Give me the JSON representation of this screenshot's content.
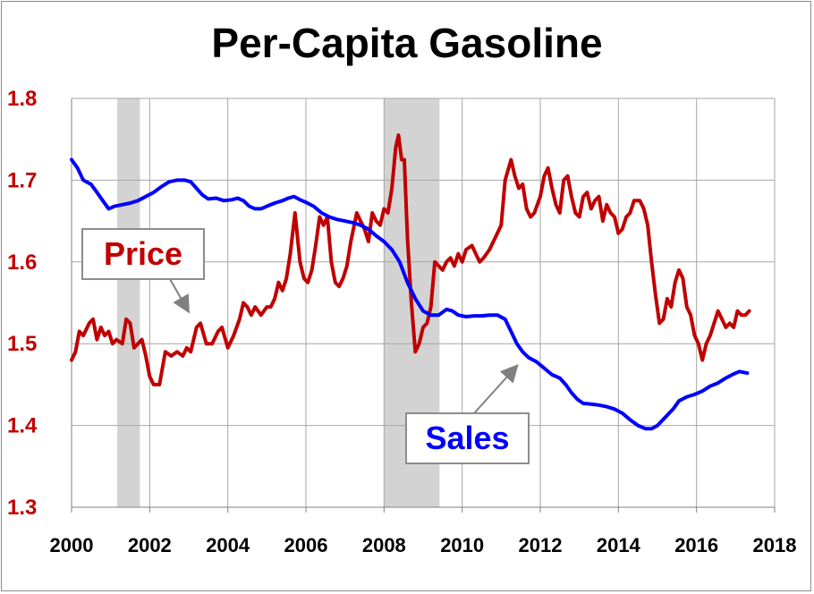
{
  "chart_data": {
    "type": "line",
    "title": "Per-Capita Gasoline",
    "xlim": [
      2000,
      2018
    ],
    "ylim": [
      1.3,
      1.8
    ],
    "x_ticks": [
      "2000",
      "2002",
      "2004",
      "2006",
      "2008",
      "2010",
      "2012",
      "2014",
      "2016",
      "2018"
    ],
    "y_ticks": [
      "1.3",
      "1.4",
      "1.5",
      "1.6",
      "1.7",
      "1.8"
    ],
    "grid": true,
    "recessions": [
      [
        2001.17,
        2001.75
      ],
      [
        2008.0,
        2009.42
      ]
    ],
    "series": [
      {
        "name": "Price",
        "color": "#c00000",
        "points": [
          [
            2000.0,
            1.48
          ],
          [
            2000.1,
            1.49
          ],
          [
            2000.2,
            1.515
          ],
          [
            2000.3,
            1.51
          ],
          [
            2000.45,
            1.525
          ],
          [
            2000.55,
            1.53
          ],
          [
            2000.65,
            1.505
          ],
          [
            2000.75,
            1.52
          ],
          [
            2000.85,
            1.51
          ],
          [
            2000.95,
            1.515
          ],
          [
            2001.05,
            1.5
          ],
          [
            2001.15,
            1.505
          ],
          [
            2001.3,
            1.5
          ],
          [
            2001.4,
            1.53
          ],
          [
            2001.5,
            1.525
          ],
          [
            2001.6,
            1.495
          ],
          [
            2001.7,
            1.5
          ],
          [
            2001.8,
            1.505
          ],
          [
            2001.9,
            1.485
          ],
          [
            2002.0,
            1.46
          ],
          [
            2002.1,
            1.45
          ],
          [
            2002.25,
            1.45
          ],
          [
            2002.4,
            1.49
          ],
          [
            2002.55,
            1.485
          ],
          [
            2002.7,
            1.49
          ],
          [
            2002.85,
            1.485
          ],
          [
            2002.95,
            1.495
          ],
          [
            2003.05,
            1.49
          ],
          [
            2003.2,
            1.52
          ],
          [
            2003.3,
            1.525
          ],
          [
            2003.45,
            1.5
          ],
          [
            2003.6,
            1.5
          ],
          [
            2003.75,
            1.515
          ],
          [
            2003.85,
            1.52
          ],
          [
            2004.0,
            1.495
          ],
          [
            2004.15,
            1.51
          ],
          [
            2004.3,
            1.53
          ],
          [
            2004.4,
            1.55
          ],
          [
            2004.5,
            1.545
          ],
          [
            2004.6,
            1.535
          ],
          [
            2004.7,
            1.545
          ],
          [
            2004.85,
            1.535
          ],
          [
            2005.0,
            1.545
          ],
          [
            2005.1,
            1.545
          ],
          [
            2005.2,
            1.555
          ],
          [
            2005.3,
            1.575
          ],
          [
            2005.4,
            1.565
          ],
          [
            2005.5,
            1.58
          ],
          [
            2005.6,
            1.61
          ],
          [
            2005.72,
            1.66
          ],
          [
            2005.85,
            1.6
          ],
          [
            2005.95,
            1.58
          ],
          [
            2006.05,
            1.575
          ],
          [
            2006.15,
            1.59
          ],
          [
            2006.25,
            1.62
          ],
          [
            2006.35,
            1.655
          ],
          [
            2006.45,
            1.645
          ],
          [
            2006.55,
            1.655
          ],
          [
            2006.65,
            1.6
          ],
          [
            2006.75,
            1.575
          ],
          [
            2006.85,
            1.57
          ],
          [
            2006.95,
            1.58
          ],
          [
            2007.05,
            1.595
          ],
          [
            2007.15,
            1.625
          ],
          [
            2007.3,
            1.66
          ],
          [
            2007.4,
            1.65
          ],
          [
            2007.5,
            1.64
          ],
          [
            2007.6,
            1.625
          ],
          [
            2007.7,
            1.66
          ],
          [
            2007.8,
            1.65
          ],
          [
            2007.9,
            1.645
          ],
          [
            2008.0,
            1.665
          ],
          [
            2008.1,
            1.66
          ],
          [
            2008.2,
            1.69
          ],
          [
            2008.3,
            1.74
          ],
          [
            2008.37,
            1.755
          ],
          [
            2008.45,
            1.725
          ],
          [
            2008.52,
            1.725
          ],
          [
            2008.6,
            1.63
          ],
          [
            2008.7,
            1.55
          ],
          [
            2008.8,
            1.49
          ],
          [
            2008.9,
            1.5
          ],
          [
            2009.0,
            1.52
          ],
          [
            2009.1,
            1.525
          ],
          [
            2009.2,
            1.545
          ],
          [
            2009.3,
            1.6
          ],
          [
            2009.4,
            1.595
          ],
          [
            2009.5,
            1.59
          ],
          [
            2009.6,
            1.6
          ],
          [
            2009.7,
            1.605
          ],
          [
            2009.8,
            1.595
          ],
          [
            2009.9,
            1.61
          ],
          [
            2010.0,
            1.6
          ],
          [
            2010.1,
            1.615
          ],
          [
            2010.25,
            1.62
          ],
          [
            2010.35,
            1.61
          ],
          [
            2010.45,
            1.6
          ],
          [
            2010.55,
            1.605
          ],
          [
            2010.7,
            1.615
          ],
          [
            2010.85,
            1.63
          ],
          [
            2011.0,
            1.645
          ],
          [
            2011.1,
            1.7
          ],
          [
            2011.25,
            1.725
          ],
          [
            2011.35,
            1.705
          ],
          [
            2011.45,
            1.69
          ],
          [
            2011.55,
            1.695
          ],
          [
            2011.65,
            1.665
          ],
          [
            2011.75,
            1.655
          ],
          [
            2011.85,
            1.66
          ],
          [
            2012.0,
            1.68
          ],
          [
            2012.1,
            1.705
          ],
          [
            2012.2,
            1.715
          ],
          [
            2012.3,
            1.69
          ],
          [
            2012.4,
            1.67
          ],
          [
            2012.5,
            1.66
          ],
          [
            2012.6,
            1.7
          ],
          [
            2012.7,
            1.705
          ],
          [
            2012.8,
            1.68
          ],
          [
            2012.9,
            1.66
          ],
          [
            2013.0,
            1.655
          ],
          [
            2013.1,
            1.68
          ],
          [
            2013.2,
            1.685
          ],
          [
            2013.3,
            1.665
          ],
          [
            2013.4,
            1.675
          ],
          [
            2013.5,
            1.68
          ],
          [
            2013.6,
            1.65
          ],
          [
            2013.7,
            1.67
          ],
          [
            2013.8,
            1.66
          ],
          [
            2013.9,
            1.655
          ],
          [
            2014.0,
            1.635
          ],
          [
            2014.1,
            1.64
          ],
          [
            2014.2,
            1.655
          ],
          [
            2014.3,
            1.66
          ],
          [
            2014.4,
            1.675
          ],
          [
            2014.55,
            1.675
          ],
          [
            2014.65,
            1.665
          ],
          [
            2014.75,
            1.645
          ],
          [
            2014.85,
            1.6
          ],
          [
            2014.95,
            1.56
          ],
          [
            2015.05,
            1.525
          ],
          [
            2015.15,
            1.53
          ],
          [
            2015.25,
            1.555
          ],
          [
            2015.35,
            1.545
          ],
          [
            2015.45,
            1.575
          ],
          [
            2015.55,
            1.59
          ],
          [
            2015.65,
            1.58
          ],
          [
            2015.75,
            1.545
          ],
          [
            2015.85,
            1.535
          ],
          [
            2015.95,
            1.51
          ],
          [
            2016.05,
            1.5
          ],
          [
            2016.15,
            1.48
          ],
          [
            2016.25,
            1.5
          ],
          [
            2016.35,
            1.51
          ],
          [
            2016.45,
            1.525
          ],
          [
            2016.55,
            1.54
          ],
          [
            2016.65,
            1.53
          ],
          [
            2016.75,
            1.52
          ],
          [
            2016.85,
            1.525
          ],
          [
            2016.95,
            1.52
          ],
          [
            2017.05,
            1.54
          ],
          [
            2017.15,
            1.535
          ],
          [
            2017.25,
            1.535
          ],
          [
            2017.35,
            1.54
          ]
        ]
      },
      {
        "name": "Sales",
        "color": "#0000ff",
        "points": [
          [
            2000.0,
            1.725
          ],
          [
            2000.15,
            1.715
          ],
          [
            2000.3,
            1.7
          ],
          [
            2000.5,
            1.695
          ],
          [
            2000.65,
            1.685
          ],
          [
            2000.8,
            1.675
          ],
          [
            2000.95,
            1.665
          ],
          [
            2001.1,
            1.668
          ],
          [
            2001.3,
            1.67
          ],
          [
            2001.5,
            1.672
          ],
          [
            2001.7,
            1.675
          ],
          [
            2001.9,
            1.68
          ],
          [
            2002.1,
            1.685
          ],
          [
            2002.3,
            1.692
          ],
          [
            2002.5,
            1.698
          ],
          [
            2002.7,
            1.7
          ],
          [
            2002.9,
            1.7
          ],
          [
            2003.05,
            1.698
          ],
          [
            2003.2,
            1.69
          ],
          [
            2003.35,
            1.682
          ],
          [
            2003.5,
            1.677
          ],
          [
            2003.7,
            1.678
          ],
          [
            2003.9,
            1.675
          ],
          [
            2004.1,
            1.676
          ],
          [
            2004.25,
            1.678
          ],
          [
            2004.4,
            1.675
          ],
          [
            2004.55,
            1.668
          ],
          [
            2004.7,
            1.665
          ],
          [
            2004.85,
            1.665
          ],
          [
            2005.0,
            1.668
          ],
          [
            2005.2,
            1.672
          ],
          [
            2005.4,
            1.675
          ],
          [
            2005.55,
            1.678
          ],
          [
            2005.7,
            1.68
          ],
          [
            2005.85,
            1.676
          ],
          [
            2006.0,
            1.673
          ],
          [
            2006.2,
            1.668
          ],
          [
            2006.4,
            1.66
          ],
          [
            2006.6,
            1.655
          ],
          [
            2006.8,
            1.652
          ],
          [
            2007.0,
            1.65
          ],
          [
            2007.2,
            1.648
          ],
          [
            2007.4,
            1.645
          ],
          [
            2007.6,
            1.64
          ],
          [
            2007.8,
            1.632
          ],
          [
            2008.0,
            1.625
          ],
          [
            2008.2,
            1.615
          ],
          [
            2008.4,
            1.6
          ],
          [
            2008.6,
            1.575
          ],
          [
            2008.8,
            1.555
          ],
          [
            2009.0,
            1.54
          ],
          [
            2009.2,
            1.535
          ],
          [
            2009.4,
            1.535
          ],
          [
            2009.6,
            1.542
          ],
          [
            2009.75,
            1.54
          ],
          [
            2009.9,
            1.535
          ],
          [
            2010.1,
            1.533
          ],
          [
            2010.3,
            1.534
          ],
          [
            2010.5,
            1.534
          ],
          [
            2010.7,
            1.535
          ],
          [
            2010.9,
            1.535
          ],
          [
            2011.1,
            1.53
          ],
          [
            2011.25,
            1.515
          ],
          [
            2011.4,
            1.5
          ],
          [
            2011.55,
            1.49
          ],
          [
            2011.7,
            1.483
          ],
          [
            2011.9,
            1.478
          ],
          [
            2012.1,
            1.47
          ],
          [
            2012.3,
            1.462
          ],
          [
            2012.5,
            1.458
          ],
          [
            2012.65,
            1.45
          ],
          [
            2012.8,
            1.44
          ],
          [
            2012.95,
            1.432
          ],
          [
            2013.1,
            1.427
          ],
          [
            2013.3,
            1.426
          ],
          [
            2013.5,
            1.425
          ],
          [
            2013.7,
            1.423
          ],
          [
            2013.9,
            1.42
          ],
          [
            2014.1,
            1.415
          ],
          [
            2014.3,
            1.407
          ],
          [
            2014.5,
            1.4
          ],
          [
            2014.7,
            1.396
          ],
          [
            2014.85,
            1.396
          ],
          [
            2015.0,
            1.4
          ],
          [
            2015.2,
            1.41
          ],
          [
            2015.4,
            1.42
          ],
          [
            2015.55,
            1.43
          ],
          [
            2015.75,
            1.435
          ],
          [
            2015.95,
            1.438
          ],
          [
            2016.15,
            1.442
          ],
          [
            2016.35,
            1.448
          ],
          [
            2016.55,
            1.452
          ],
          [
            2016.75,
            1.458
          ],
          [
            2016.95,
            1.463
          ],
          [
            2017.1,
            1.466
          ],
          [
            2017.3,
            1.464
          ]
        ]
      }
    ],
    "callouts": [
      {
        "label": "Price",
        "color": "#c00000"
      },
      {
        "label": "Sales",
        "color": "#0000ff"
      }
    ]
  }
}
